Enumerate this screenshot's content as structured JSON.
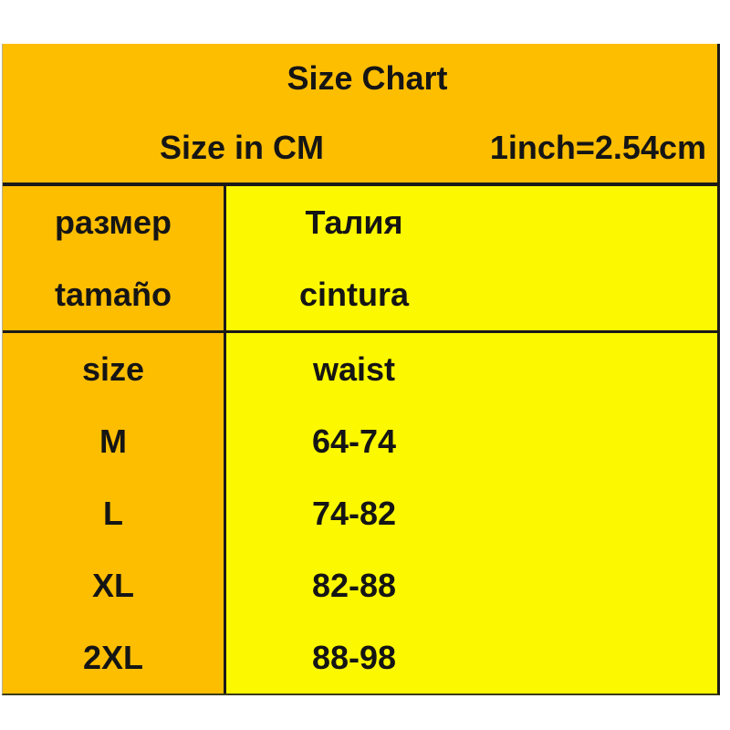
{
  "header": {
    "title": "Size Chart",
    "unit_label": "Size in CM",
    "conversion_note": "1inch=2.54cm"
  },
  "table": {
    "label_rows": [
      {
        "size_label": "размер",
        "measure_label": "Талия"
      },
      {
        "size_label": "tamaño",
        "measure_label": "cintura"
      }
    ],
    "header_row": {
      "size_label": "size",
      "measure_label": "waist"
    },
    "rows": [
      {
        "size": "M",
        "waist": "64-74"
      },
      {
        "size": "L",
        "waist": "74-82"
      },
      {
        "size": "XL",
        "waist": "82-88"
      },
      {
        "size": "2XL",
        "waist": "88-98"
      }
    ]
  },
  "colors": {
    "orange": "#FEBE00",
    "yellow": "#FCF800",
    "border": "#1A1A1A",
    "text": "#151515",
    "background": "#FFFFFF"
  },
  "chart_data": {
    "type": "table",
    "title": "Size Chart",
    "subtitle": "Size in CM",
    "note": "1inch=2.54cm",
    "columns": [
      "size / размер / tamaño",
      "waist / Талия / cintura"
    ],
    "rows": [
      [
        "M",
        "64-74"
      ],
      [
        "L",
        "74-82"
      ],
      [
        "XL",
        "82-88"
      ],
      [
        "2XL",
        "88-98"
      ]
    ],
    "units": "cm"
  }
}
